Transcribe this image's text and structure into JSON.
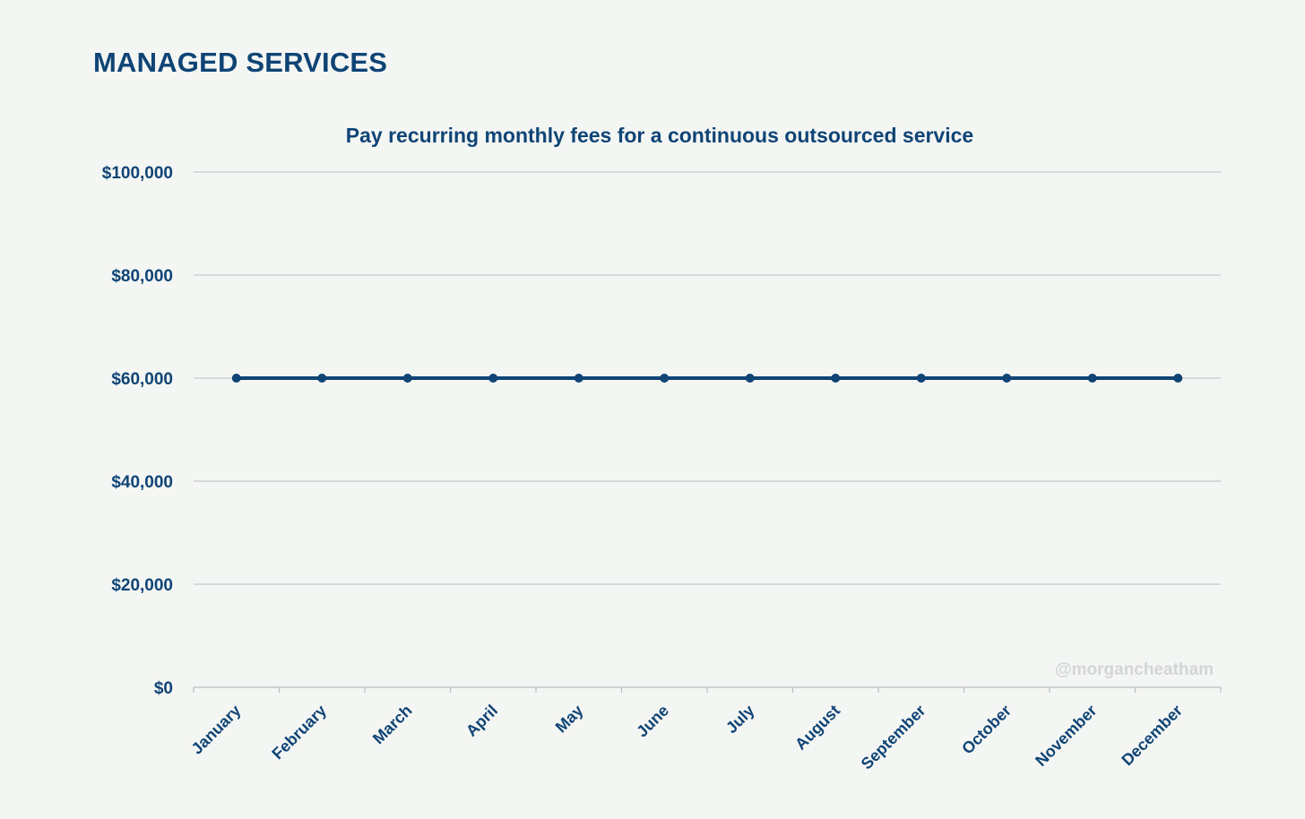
{
  "page": {
    "title": "MANAGED SERVICES",
    "watermark": "@morgancheatham"
  },
  "colors": {
    "background": "#f4f6f4",
    "text": "#0f4475",
    "series": "#0f4475",
    "grid": "#c5c9c7",
    "watermark": "#d3d6d4"
  },
  "chart_data": {
    "type": "line",
    "title": "Pay recurring monthly fees for a continuous outsourced service",
    "xlabel": "",
    "ylabel": "",
    "categories": [
      "January",
      "February",
      "March",
      "April",
      "May",
      "June",
      "July",
      "August",
      "September",
      "October",
      "November",
      "December"
    ],
    "series": [
      {
        "values": [
          60000,
          60000,
          60000,
          60000,
          60000,
          60000,
          60000,
          60000,
          60000,
          60000,
          60000,
          60000
        ]
      }
    ],
    "ylim": [
      0,
      100000
    ],
    "yticks": [
      0,
      20000,
      40000,
      60000,
      80000,
      100000
    ],
    "ytick_labels": [
      "$0",
      "$20,000",
      "$40,000",
      "$60,000",
      "$80,000",
      "$100,000"
    ],
    "grid": true,
    "legend": "none",
    "markers": true
  }
}
